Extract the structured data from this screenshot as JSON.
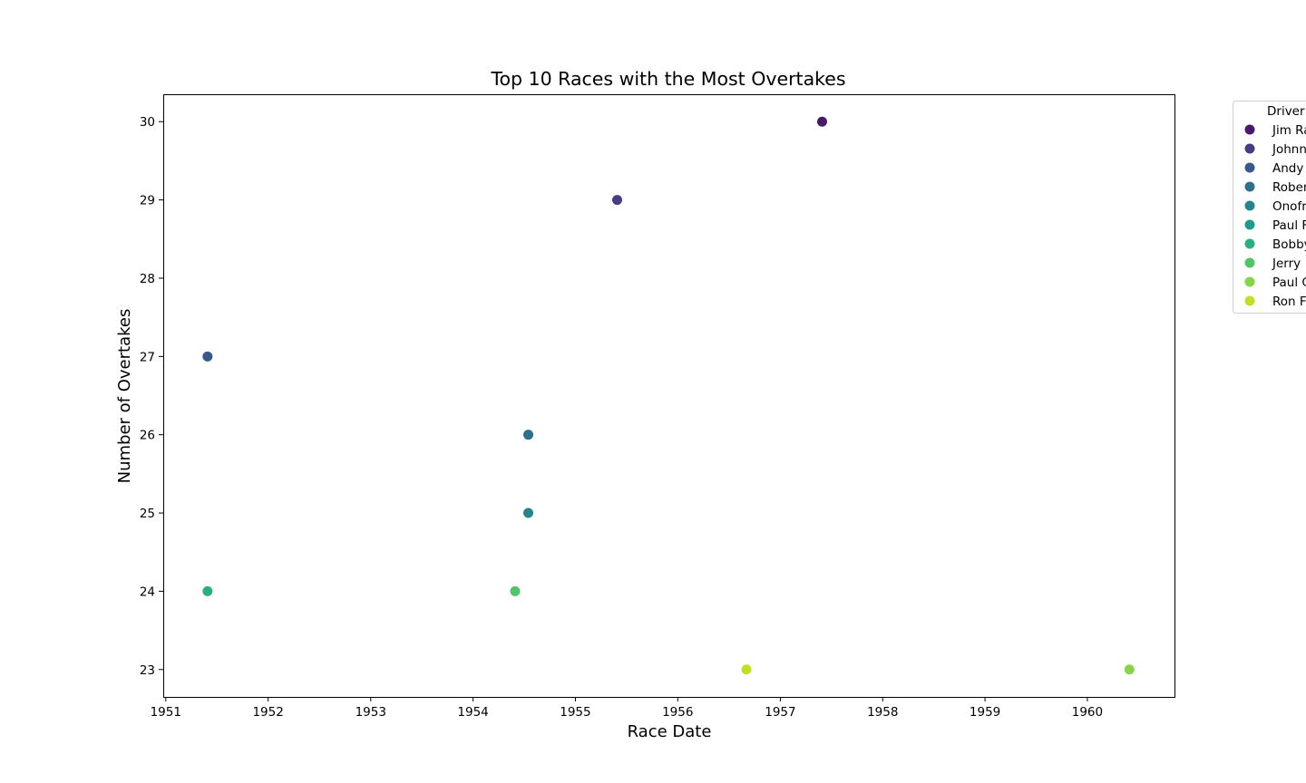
{
  "chart_data": {
    "type": "scatter",
    "title": "Top 10 Races with the Most Overtakes",
    "xlabel": "Race Date",
    "ylabel": "Number of Overtakes",
    "x_ticks": [
      "1951",
      "1952",
      "1953",
      "1954",
      "1955",
      "1956",
      "1957",
      "1958",
      "1959",
      "1960"
    ],
    "y_ticks": [
      "23",
      "24",
      "25",
      "26",
      "27",
      "28",
      "29",
      "30"
    ],
    "xlim": [
      "1950-12-23",
      "1960-11-10"
    ],
    "ylim": [
      22.65,
      30.35
    ],
    "grid": false,
    "legend": {
      "title": "Driver",
      "position": "outside-right"
    },
    "series": [
      {
        "name": "Jim Ra",
        "color": "#481a6c",
        "points": [
          {
            "x": "1957-05-30",
            "y": 30
          }
        ]
      },
      {
        "name": "Johnn",
        "color": "#433e85",
        "points": [
          {
            "x": "1955-05-30",
            "y": 29
          }
        ]
      },
      {
        "name": "Andy",
        "color": "#38598c",
        "points": [
          {
            "x": "1951-05-30",
            "y": 27
          }
        ]
      },
      {
        "name": "Rober",
        "color": "#2d708e",
        "points": [
          {
            "x": "1954-07-17",
            "y": 26
          }
        ]
      },
      {
        "name": "Onofr",
        "color": "#25858e",
        "points": [
          {
            "x": "1954-07-17",
            "y": 25
          }
        ]
      },
      {
        "name": "Paul F",
        "color": "#1e9b8a",
        "points": []
      },
      {
        "name": "Bobby",
        "color": "#2ab07f",
        "points": [
          {
            "x": "1951-05-30",
            "y": 24
          }
        ]
      },
      {
        "name": "Jerry",
        "color": "#52c569",
        "points": [
          {
            "x": "1954-05-31",
            "y": 24
          }
        ]
      },
      {
        "name": "Paul C",
        "color": "#86d549",
        "points": [
          {
            "x": "1960-05-30",
            "y": 23
          }
        ]
      },
      {
        "name": "Ron F",
        "color": "#c2df23",
        "points": [
          {
            "x": "1956-09-02",
            "y": 23
          }
        ]
      }
    ]
  }
}
